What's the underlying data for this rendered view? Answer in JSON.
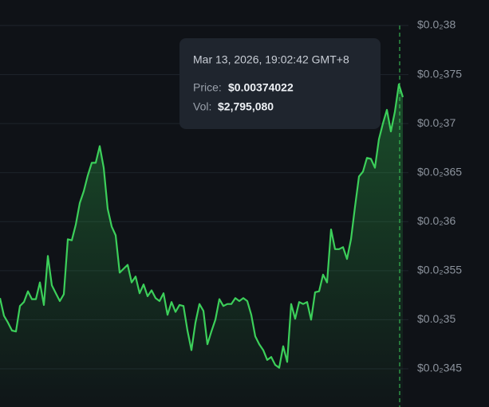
{
  "chart_data": {
    "type": "line",
    "color": "#3ccf5a",
    "grid": true,
    "ylim": [
      0.003411,
      0.003826
    ],
    "yticks": [
      {
        "value": 0.0038,
        "label": "$0.0₂38"
      },
      {
        "value": 0.00375,
        "label": "$0.0₂375"
      },
      {
        "value": 0.0037,
        "label": "$0.0₂37"
      },
      {
        "value": 0.00365,
        "label": "$0.0₂365"
      },
      {
        "value": 0.0036,
        "label": "$0.0₂36"
      },
      {
        "value": 0.00355,
        "label": "$0.0₂355"
      },
      {
        "value": 0.0035,
        "label": "$0.0₂35"
      },
      {
        "value": 0.00345,
        "label": "$0.0₂345"
      }
    ],
    "values": [
      0.003522,
      0.003504,
      0.003497,
      0.003489,
      0.003488,
      0.003514,
      0.003518,
      0.003529,
      0.003521,
      0.003521,
      0.003538,
      0.003515,
      0.003565,
      0.003535,
      0.003527,
      0.003519,
      0.003526,
      0.003582,
      0.003581,
      0.003597,
      0.003619,
      0.003631,
      0.003647,
      0.00366,
      0.00366,
      0.003677,
      0.003655,
      0.003613,
      0.003595,
      0.003586,
      0.003548,
      0.003552,
      0.003556,
      0.003538,
      0.003544,
      0.003527,
      0.003536,
      0.003524,
      0.00353,
      0.003522,
      0.003519,
      0.003527,
      0.003505,
      0.003518,
      0.003508,
      0.003515,
      0.003514,
      0.003489,
      0.003469,
      0.003497,
      0.003516,
      0.003509,
      0.003475,
      0.003488,
      0.0035,
      0.003521,
      0.003514,
      0.003516,
      0.003516,
      0.003522,
      0.003519,
      0.003522,
      0.003519,
      0.003505,
      0.003483,
      0.003475,
      0.003469,
      0.003459,
      0.003462,
      0.003454,
      0.003451,
      0.003473,
      0.003457,
      0.003516,
      0.003501,
      0.003518,
      0.003516,
      0.003518,
      0.0035,
      0.003528,
      0.003529,
      0.003546,
      0.003538,
      0.003592,
      0.003572,
      0.003572,
      0.003574,
      0.003562,
      0.003582,
      0.003615,
      0.003646,
      0.003651,
      0.003665,
      0.003664,
      0.003655,
      0.003684,
      0.0037,
      0.003714,
      0.003692,
      0.003712,
      0.00374,
      0.003727
    ],
    "tooltip": {
      "date": "Mar 13, 2026, 19:02:42 GMT+8",
      "price_label": "Price:",
      "price": "$0.00374022",
      "volume_label": "Vol:",
      "volume": "$2,795,080"
    }
  }
}
